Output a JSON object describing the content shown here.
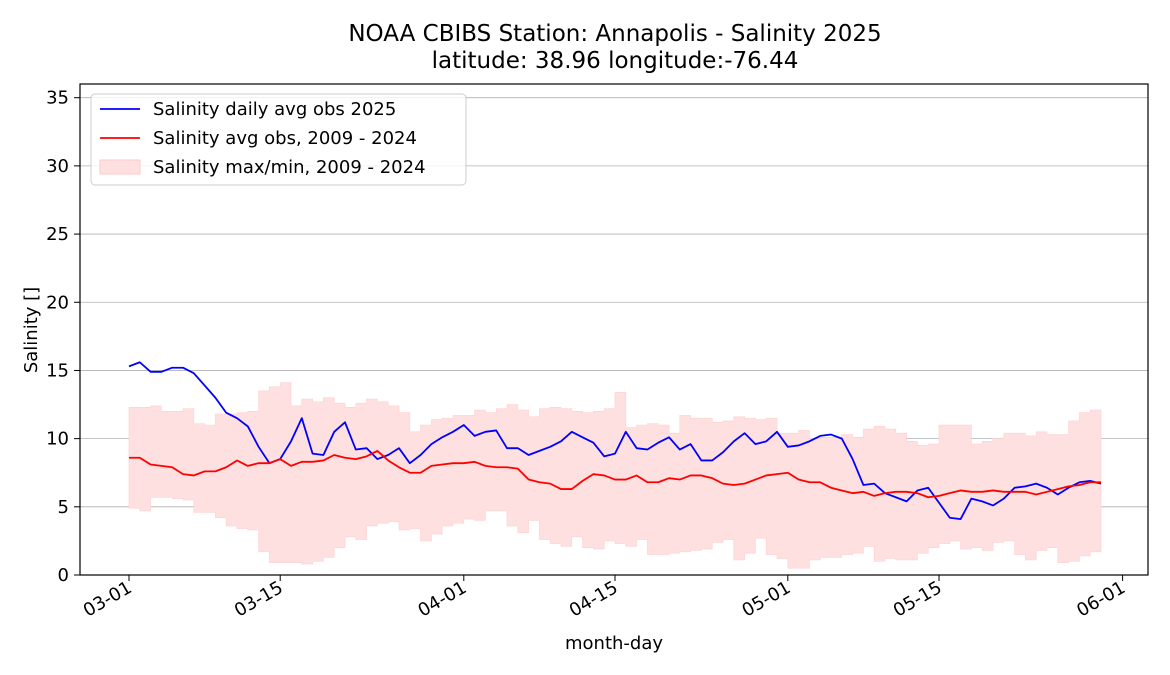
{
  "chart_data": {
    "type": "line",
    "title": "NOAA CBIBS Station: Annapolis - Salinity 2025",
    "subtitle": "latitude: 38.96 longitude:-76.44",
    "xlabel": "month-day",
    "ylabel": "Salinity []",
    "x_start": "03-01",
    "x_ticks": [
      "03-01",
      "03-15",
      "04-01",
      "04-15",
      "05-01",
      "05-15",
      "06-01"
    ],
    "x_tick_days": [
      0,
      14,
      31,
      45,
      61,
      75,
      92
    ],
    "y_ticks": [
      0,
      5,
      10,
      15,
      20,
      25,
      30,
      35
    ],
    "ylim": [
      0,
      35
    ],
    "grid": "horizontal",
    "legend_position": "top-left",
    "series": [
      {
        "name": "Salinity daily avg obs 2025",
        "color": "#0000ff",
        "values": [
          15.3,
          15.6,
          14.9,
          14.9,
          15.2,
          15.2,
          14.8,
          13.9,
          13.0,
          11.9,
          11.5,
          10.9,
          9.4,
          8.2,
          8.5,
          9.8,
          11.5,
          8.9,
          8.8,
          10.5,
          11.2,
          9.2,
          9.3,
          8.5,
          8.8,
          9.3,
          8.2,
          8.8,
          9.6,
          10.1,
          10.5,
          11.0,
          10.2,
          10.5,
          10.6,
          9.3,
          9.3,
          8.8,
          9.1,
          9.4,
          9.8,
          10.5,
          10.1,
          9.7,
          8.7,
          8.9,
          10.5,
          9.3,
          9.2,
          9.7,
          10.1,
          9.2,
          9.6,
          8.4,
          8.4,
          9.0,
          9.8,
          10.4,
          9.6,
          9.8,
          10.5,
          9.4,
          9.5,
          9.8,
          10.2,
          10.3,
          10.0,
          8.5,
          6.6,
          6.7,
          6.0,
          5.7,
          5.4,
          6.2,
          6.4,
          5.3,
          4.2,
          4.1,
          5.6,
          5.4,
          5.1,
          5.6,
          6.4,
          6.5,
          6.7,
          6.4,
          5.9,
          6.4,
          6.8,
          6.9,
          6.7
        ]
      },
      {
        "name": "Salinity avg obs, 2009 - 2024",
        "color": "#ff0000",
        "values": [
          8.6,
          8.6,
          8.1,
          8.0,
          7.9,
          7.4,
          7.3,
          7.6,
          7.6,
          7.9,
          8.4,
          8.0,
          8.2,
          8.2,
          8.5,
          8.0,
          8.3,
          8.3,
          8.4,
          8.8,
          8.6,
          8.5,
          8.7,
          9.1,
          8.4,
          7.9,
          7.5,
          7.5,
          8.0,
          8.1,
          8.2,
          8.2,
          8.3,
          8.0,
          7.9,
          7.9,
          7.8,
          7.0,
          6.8,
          6.7,
          6.3,
          6.3,
          6.9,
          7.4,
          7.3,
          7.0,
          7.0,
          7.3,
          6.8,
          6.8,
          7.1,
          7.0,
          7.3,
          7.3,
          7.1,
          6.7,
          6.6,
          6.7,
          7.0,
          7.3,
          7.4,
          7.5,
          7.0,
          6.8,
          6.8,
          6.4,
          6.2,
          6.0,
          6.1,
          5.8,
          6.0,
          6.1,
          6.1,
          6.0,
          5.7,
          5.8,
          6.0,
          6.2,
          6.1,
          6.1,
          6.2,
          6.1,
          6.1,
          6.1,
          5.9,
          6.1,
          6.3,
          6.5,
          6.6,
          6.8,
          6.8
        ]
      }
    ],
    "band": {
      "name": "Salinity max/min, 2009 - 2024",
      "color": "#ffe0e0",
      "max": [
        12.3,
        12.3,
        12.4,
        12.0,
        12.0,
        12.2,
        11.1,
        11.0,
        11.8,
        11.8,
        11.9,
        12.0,
        13.5,
        13.8,
        14.1,
        12.4,
        12.9,
        12.7,
        13.0,
        12.6,
        12.3,
        12.6,
        12.9,
        12.7,
        12.4,
        11.9,
        10.5,
        11.0,
        11.4,
        11.5,
        11.7,
        11.7,
        12.1,
        11.9,
        12.2,
        12.5,
        12.1,
        11.6,
        12.2,
        12.3,
        12.2,
        12.0,
        11.9,
        12.0,
        12.2,
        13.4,
        10.8,
        11.0,
        11.1,
        11.0,
        10.4,
        11.7,
        11.5,
        11.5,
        11.2,
        11.3,
        11.6,
        11.5,
        11.4,
        11.5,
        10.4,
        10.4,
        10.6,
        10.0,
        10.1,
        10.1,
        10.3,
        10.1,
        10.7,
        10.9,
        10.7,
        10.4,
        9.8,
        9.5,
        9.6,
        11.0,
        11.0,
        11.0,
        9.6,
        9.8,
        10.0,
        10.4,
        10.4,
        10.2,
        10.5,
        10.3,
        10.3,
        11.3,
        11.9,
        12.1,
        12.0
      ],
      "min": [
        4.9,
        4.7,
        5.7,
        5.7,
        5.6,
        5.5,
        4.6,
        4.6,
        4.2,
        3.6,
        3.4,
        3.3,
        1.7,
        0.9,
        0.9,
        0.9,
        0.8,
        1.0,
        1.3,
        2.0,
        2.8,
        2.6,
        3.6,
        3.8,
        3.9,
        3.3,
        3.4,
        2.5,
        3.0,
        3.6,
        3.8,
        4.1,
        4.0,
        4.7,
        4.7,
        3.6,
        3.1,
        4.0,
        2.6,
        2.3,
        2.1,
        2.8,
        2.0,
        1.9,
        2.5,
        2.3,
        2.1,
        2.6,
        1.5,
        1.5,
        1.6,
        1.7,
        1.8,
        1.9,
        2.4,
        2.6,
        1.1,
        1.6,
        2.7,
        1.5,
        1.2,
        0.5,
        0.5,
        1.1,
        1.3,
        1.3,
        1.5,
        1.6,
        2.1,
        1.0,
        1.2,
        1.1,
        1.1,
        1.6,
        2.0,
        2.3,
        2.5,
        1.9,
        2.0,
        1.8,
        2.4,
        2.5,
        1.5,
        1.1,
        1.8,
        2.0,
        0.9,
        1.0,
        1.4,
        1.7,
        1.8
      ]
    }
  }
}
